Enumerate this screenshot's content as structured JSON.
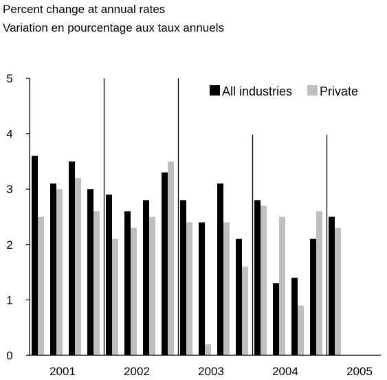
{
  "header": {
    "line1": "Percent change at annual rates",
    "line2": "Variation en pourcentage aux taux annuels"
  },
  "chart_data": {
    "type": "bar",
    "title": "",
    "xlabel": "",
    "ylabel": "",
    "ylim": [
      0,
      5
    ],
    "yticks": [
      "0",
      "1",
      "2",
      "3",
      "4",
      "5"
    ],
    "year_labels": [
      "2001",
      "2002",
      "2003",
      "2004",
      "2005"
    ],
    "categories": [
      "2001Q1",
      "2001Q2",
      "2001Q3",
      "2001Q4",
      "2002Q1",
      "2002Q2",
      "2002Q3",
      "2002Q4",
      "2003Q1",
      "2003Q2",
      "2003Q3",
      "2003Q4",
      "2004Q1",
      "2004Q2",
      "2004Q3",
      "2004Q4",
      "2005Q1"
    ],
    "series": [
      {
        "name": "All industries",
        "color": "#000000",
        "values": [
          3.6,
          3.1,
          3.5,
          3.0,
          2.9,
          2.6,
          2.8,
          3.3,
          2.8,
          2.4,
          3.1,
          2.1,
          2.8,
          1.3,
          1.4,
          2.1,
          2.5
        ]
      },
      {
        "name": "Private",
        "color": "#bfbfbf",
        "values": [
          2.5,
          3.0,
          3.2,
          2.6,
          2.1,
          2.3,
          2.5,
          3.5,
          2.4,
          0.2,
          2.4,
          1.6,
          2.7,
          2.5,
          0.9,
          2.6,
          2.3
        ]
      }
    ],
    "legend_position": "top-right",
    "grid": false
  }
}
